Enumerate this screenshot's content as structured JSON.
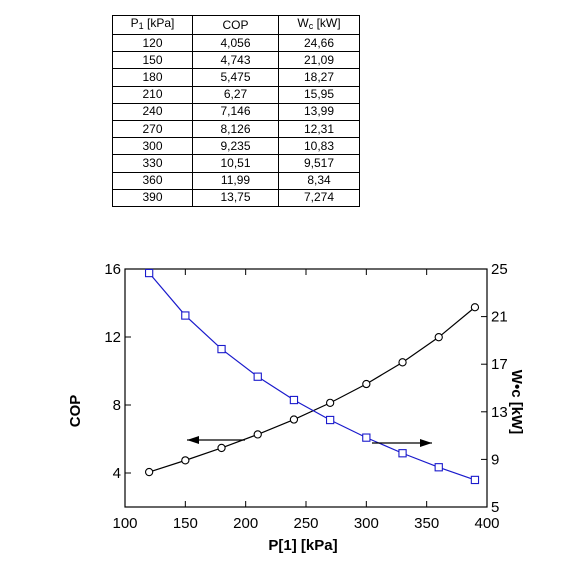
{
  "table": {
    "headers": [
      "P₁ [kPa]",
      "COP",
      "Wc [kW]"
    ],
    "rows": [
      [
        "120",
        "4,056",
        "24,66"
      ],
      [
        "150",
        "4,743",
        "21,09"
      ],
      [
        "180",
        "5,475",
        "18,27"
      ],
      [
        "210",
        "6,27",
        "15,95"
      ],
      [
        "240",
        "7,146",
        "13,99"
      ],
      [
        "270",
        "8,126",
        "12,31"
      ],
      [
        "300",
        "9,235",
        "10,83"
      ],
      [
        "330",
        "10,51",
        "9,517"
      ],
      [
        "360",
        "11,99",
        "8,34"
      ],
      [
        "390",
        "13,75",
        "7,274"
      ]
    ]
  },
  "chart_data": {
    "type": "line",
    "x": [
      120,
      150,
      180,
      210,
      240,
      270,
      300,
      330,
      360,
      390
    ],
    "series": [
      {
        "values": [
          4.056,
          4.743,
          5.475,
          6.27,
          7.146,
          8.126,
          9.235,
          10.51,
          11.99,
          13.75
        ],
        "axis": "left",
        "marker": "circle",
        "color": "#000000"
      },
      {
        "values": [
          24.66,
          21.09,
          18.27,
          15.95,
          13.99,
          12.31,
          10.83,
          9.517,
          8.34,
          7.274
        ],
        "axis": "right",
        "marker": "square",
        "color": "#1a1acc"
      }
    ],
    "xlabel": "P[1]  [kPa]",
    "ylabel_left": "COP",
    "ylabel_right": "W•c [kW]",
    "xlim": [
      100,
      400
    ],
    "ylim_left": [
      2,
      16
    ],
    "ylim_right": [
      5,
      25
    ],
    "x_ticks": [
      100,
      150,
      200,
      250,
      300,
      350,
      400
    ],
    "y_ticks_left": [
      4,
      8,
      12,
      16
    ],
    "y_ticks_right": [
      5,
      9,
      13,
      17,
      21,
      25
    ],
    "grid": false
  }
}
